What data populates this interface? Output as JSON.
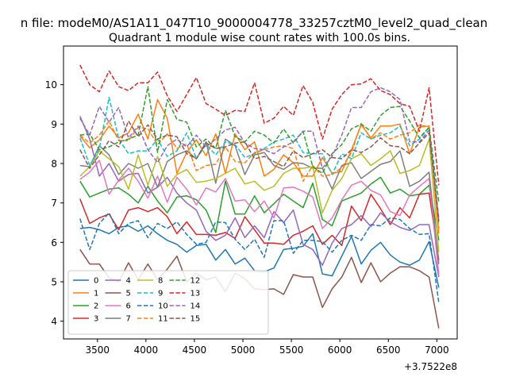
{
  "chart_data": {
    "type": "line",
    "suptitle": "n file: modeM0/AS1A11_047T10_9000004778_33257cztM0_level2_quad_clean",
    "title": "Quadrant 1 module wise count rates with 100.0s bins.",
    "xlabel": "",
    "ylabel": "",
    "x_offset_label": "+3.7522e8",
    "xlim": [
      3150,
      7210
    ],
    "ylim": [
      3.55,
      10.98
    ],
    "xticks": [
      3500,
      4000,
      4500,
      5000,
      5500,
      6000,
      6500,
      7000
    ],
    "yticks": [
      4,
      5,
      6,
      7,
      8,
      9,
      10
    ],
    "grid": false,
    "legend": "lower-left",
    "x": [
      3320,
      3420,
      3520,
      3620,
      3720,
      3820,
      3920,
      4020,
      4120,
      4220,
      4320,
      4420,
      4520,
      4620,
      4720,
      4820,
      4920,
      5020,
      5120,
      5220,
      5320,
      5420,
      5520,
      5620,
      5720,
      5820,
      5920,
      6020,
      6120,
      6220,
      6320,
      6420,
      6520,
      6620,
      6720,
      6820,
      6920,
      7020
    ],
    "series": [
      {
        "name": "0",
        "color": "#1f77b4",
        "dash": false,
        "values": [
          6.35,
          6.38,
          6.32,
          6.22,
          6.38,
          6.42,
          6.28,
          6.42,
          6.22,
          6.05,
          5.95,
          5.75,
          5.92,
          5.95,
          5.55,
          5.82,
          5.45,
          5.6,
          5.28,
          5.25,
          5.35,
          5.82,
          5.85,
          5.9,
          6.22,
          5.2,
          5.15,
          5.65,
          6.15,
          5.45,
          5.8,
          6.0,
          5.68,
          5.5,
          5.42,
          5.55,
          6.02,
          4.85
        ]
      },
      {
        "name": "1",
        "color": "#ff7f0e",
        "dash": false,
        "values": [
          8.7,
          8.4,
          8.6,
          8.95,
          8.65,
          8.78,
          9.25,
          8.62,
          9.62,
          9.15,
          7.75,
          8.28,
          8.6,
          8.2,
          8.75,
          7.75,
          8.75,
          8.35,
          8.55,
          7.68,
          7.85,
          8.22,
          8.02,
          7.68,
          7.68,
          8.15,
          7.75,
          7.8,
          8.35,
          8.98,
          8.65,
          8.95,
          8.95,
          9.0,
          8.25,
          8.92,
          8.95,
          6.22
        ]
      },
      {
        "name": "2",
        "color": "#2ca02c",
        "dash": false,
        "values": [
          7.55,
          7.15,
          7.25,
          7.35,
          7.38,
          7.22,
          7.0,
          7.42,
          7.05,
          6.75,
          7.15,
          7.18,
          7.08,
          6.82,
          6.25,
          7.55,
          6.72,
          6.72,
          7.18,
          6.75,
          6.98,
          7.22,
          7.05,
          6.88,
          7.5,
          6.58,
          6.42,
          7.05,
          7.15,
          7.25,
          7.48,
          7.65,
          7.25,
          7.35,
          7.18,
          7.22,
          7.45,
          6.05
        ]
      },
      {
        "name": "3",
        "color": "#d62728",
        "dash": false,
        "values": [
          7.1,
          6.48,
          6.62,
          6.72,
          6.32,
          6.82,
          6.88,
          6.78,
          6.88,
          6.65,
          6.22,
          6.52,
          6.2,
          6.2,
          6.18,
          6.25,
          6.1,
          6.65,
          6.32,
          5.98,
          5.98,
          5.95,
          6.18,
          6.28,
          6.42,
          5.95,
          6.18,
          5.92,
          6.92,
          6.55,
          7.22,
          6.85,
          6.45,
          6.88,
          6.62,
          7.22,
          7.25,
          5.55
        ]
      },
      {
        "name": "4",
        "color": "#9467bd",
        "dash": false,
        "values": [
          9.2,
          8.62,
          7.68,
          8.0,
          7.55,
          7.72,
          7.75,
          7.25,
          7.4,
          7.65,
          7.25,
          7.0,
          6.82,
          6.28,
          6.05,
          6.18,
          6.62,
          6.12,
          6.42,
          6.12,
          6.78,
          6.5,
          6.82,
          5.95,
          5.82,
          5.42,
          5.98,
          6.35,
          6.45,
          6.68,
          6.4,
          6.75,
          6.52,
          6.38,
          6.3,
          6.45,
          6.45,
          5.12
        ]
      },
      {
        "name": "5",
        "color": "#8c564b",
        "dash": false,
        "values": [
          5.82,
          5.45,
          5.45,
          5.1,
          5.0,
          5.48,
          5.05,
          5.45,
          5.05,
          5.32,
          5.65,
          5.0,
          5.22,
          5.05,
          5.12,
          4.75,
          5.22,
          5.08,
          4.82,
          4.8,
          4.82,
          4.68,
          5.18,
          5.12,
          5.12,
          4.35,
          4.82,
          5.12,
          5.62,
          4.98,
          5.48,
          5.0,
          5.22,
          5.38,
          5.38,
          5.28,
          5.12,
          3.82
        ]
      },
      {
        "name": "6",
        "color": "#e377c2",
        "dash": false,
        "values": [
          7.6,
          7.78,
          8.08,
          7.22,
          7.58,
          7.88,
          7.55,
          7.12,
          7.68,
          7.02,
          7.65,
          7.35,
          6.95,
          7.38,
          7.28,
          7.62,
          7.05,
          7.08,
          6.78,
          7.05,
          6.62,
          7.38,
          7.4,
          7.3,
          7.15,
          6.35,
          6.62,
          7.08,
          7.45,
          7.55,
          7.32,
          7.2,
          6.78,
          6.68,
          7.2,
          7.42,
          7.62,
          5.18
        ]
      },
      {
        "name": "7",
        "color": "#7f7f7f",
        "dash": false,
        "values": [
          7.95,
          7.92,
          8.45,
          8.22,
          7.72,
          8.0,
          7.88,
          8.0,
          7.4,
          8.05,
          8.22,
          8.32,
          8.12,
          8.55,
          7.5,
          8.62,
          8.45,
          7.72,
          8.22,
          8.28,
          7.95,
          7.85,
          8.02,
          8.0,
          7.88,
          7.88,
          7.35,
          7.95,
          8.02,
          7.62,
          7.8,
          7.98,
          8.05,
          8.32,
          7.42,
          7.55,
          7.78,
          5.45
        ]
      },
      {
        "name": "8",
        "color": "#bcbd22",
        "dash": false,
        "values": [
          7.68,
          7.92,
          8.32,
          8.12,
          7.92,
          7.35,
          8.22,
          7.45,
          8.18,
          7.42,
          7.72,
          7.85,
          7.52,
          7.55,
          7.62,
          7.75,
          7.88,
          7.48,
          7.55,
          7.32,
          7.42,
          7.75,
          7.88,
          7.88,
          7.92,
          6.75,
          7.32,
          7.62,
          8.12,
          8.25,
          7.95,
          8.12,
          8.32,
          7.75,
          7.82,
          7.95,
          8.62,
          5.75
        ]
      },
      {
        "name": "9",
        "color": "#17becf",
        "dash": true,
        "values": [
          8.65,
          7.95,
          8.38,
          9.68,
          8.62,
          8.25,
          8.32,
          8.32,
          8.62,
          8.18,
          8.32,
          8.78,
          8.12,
          8.48,
          8.22,
          8.55,
          8.48,
          8.15,
          8.25,
          8.38,
          8.55,
          8.62,
          8.72,
          8.28,
          8.25,
          8.25,
          7.72,
          8.25,
          8.12,
          8.78,
          8.62,
          8.72,
          8.78,
          8.95,
          8.45,
          8.62,
          8.92,
          6.55
        ]
      },
      {
        "name": "10",
        "color": "#1f77b4",
        "dash": true,
        "values": [
          6.6,
          5.82,
          6.48,
          6.75,
          6.22,
          6.48,
          6.55,
          6.12,
          6.48,
          6.35,
          6.52,
          6.2,
          5.95,
          6.0,
          6.52,
          6.5,
          6.08,
          5.82,
          6.08,
          5.62,
          6.55,
          6.55,
          5.72,
          6.05,
          6.05,
          6.02,
          5.75,
          6.05,
          6.18,
          6.05,
          6.45,
          6.42,
          6.62,
          6.58,
          6.35,
          6.2,
          6.22,
          4.48
        ]
      },
      {
        "name": "11",
        "color": "#ff7f0e",
        "dash": true,
        "values": [
          8.72,
          8.52,
          8.72,
          9.08,
          8.58,
          8.58,
          8.92,
          8.88,
          8.48,
          8.75,
          8.38,
          8.5,
          7.82,
          7.95,
          7.98,
          8.42,
          8.05,
          8.02,
          8.28,
          8.35,
          8.42,
          8.45,
          8.38,
          7.55,
          7.95,
          7.68,
          7.72,
          7.9,
          8.28,
          9.02,
          8.62,
          8.78,
          8.62,
          8.72,
          8.78,
          8.98,
          8.92,
          6.35
        ]
      },
      {
        "name": "12",
        "color": "#2ca02c",
        "dash": true,
        "values": [
          8.72,
          8.75,
          8.35,
          8.42,
          8.55,
          8.62,
          8.72,
          9.95,
          8.28,
          9.62,
          9.12,
          9.05,
          8.42,
          8.62,
          8.38,
          9.35,
          8.68,
          8.55,
          8.82,
          8.72,
          8.52,
          8.88,
          8.52,
          8.82,
          7.92,
          7.75,
          8.25,
          8.48,
          8.88,
          9.0,
          8.82,
          9.22,
          9.42,
          9.45,
          9.08,
          8.65,
          8.92,
          7.02
        ]
      },
      {
        "name": "13",
        "color": "#d62728",
        "dash": true,
        "values": [
          10.5,
          10.0,
          9.82,
          10.35,
          9.95,
          9.85,
          10.05,
          10.05,
          10.32,
          9.72,
          9.32,
          9.75,
          10.18,
          9.52,
          9.38,
          9.22,
          9.35,
          9.32,
          10.05,
          9.02,
          9.15,
          9.45,
          9.22,
          9.98,
          9.55,
          8.62,
          9.38,
          9.75,
          10.0,
          10.02,
          10.15,
          9.85,
          9.75,
          9.52,
          9.45,
          8.82,
          9.92,
          7.45
        ]
      },
      {
        "name": "14",
        "color": "#9467bd",
        "dash": true,
        "values": [
          9.15,
          8.72,
          9.45,
          9.05,
          9.42,
          8.65,
          8.95,
          8.35,
          8.02,
          8.45,
          8.62,
          8.42,
          8.72,
          8.42,
          8.62,
          8.85,
          8.92,
          8.52,
          8.38,
          8.35,
          8.25,
          8.42,
          8.55,
          8.82,
          8.82,
          7.88,
          8.18,
          8.72,
          9.42,
          9.42,
          9.82,
          9.92,
          9.82,
          9.62,
          8.55,
          8.55,
          8.85,
          6.62
        ]
      },
      {
        "name": "15",
        "color": "#8c564b",
        "dash": true,
        "values": [
          8.35,
          7.88,
          8.22,
          8.58,
          8.42,
          9.08,
          8.68,
          8.98,
          8.62,
          8.72,
          8.68,
          8.25,
          8.12,
          8.52,
          8.38,
          8.42,
          8.52,
          8.55,
          8.12,
          8.18,
          8.05,
          7.92,
          8.32,
          8.15,
          8.25,
          8.35,
          8.15,
          8.12,
          8.35,
          8.28,
          8.42,
          8.65,
          8.45,
          8.42,
          8.25,
          8.52,
          8.78,
          6.52
        ]
      }
    ]
  }
}
